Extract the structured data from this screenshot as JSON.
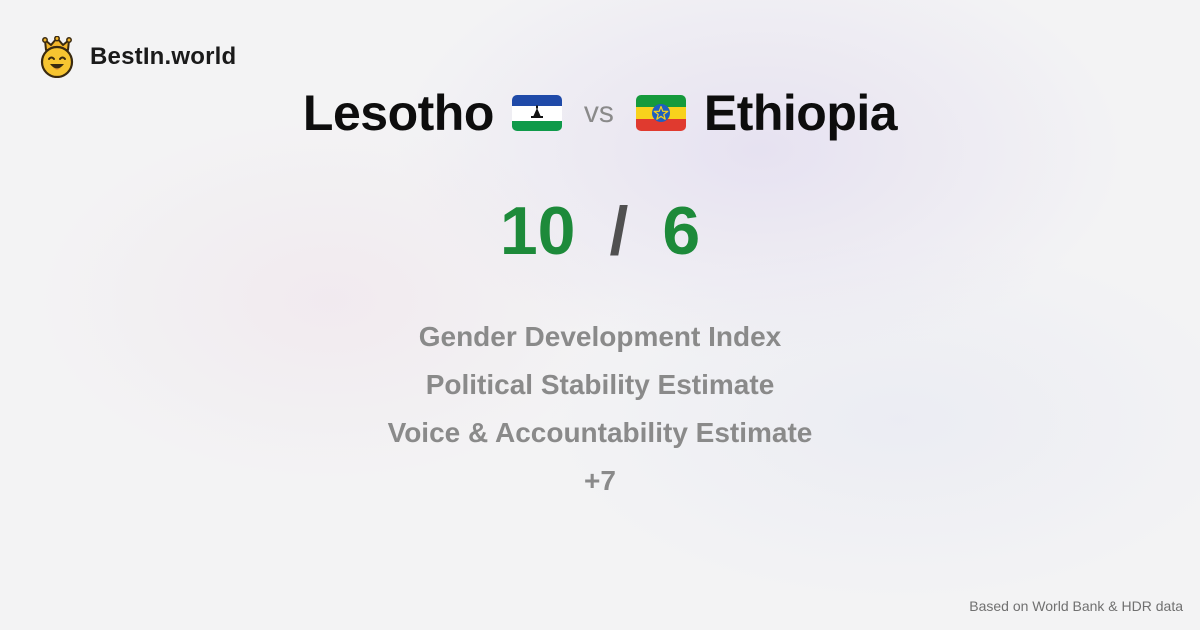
{
  "brand": {
    "name": "BestIn.world",
    "logo_icon": "smiling-crown-face-icon",
    "logo_color": "#f7c531"
  },
  "comparison": {
    "left": {
      "country": "Lesotho",
      "flag_icon": "lesotho-flag-icon",
      "score": "10"
    },
    "vs_label": "vs",
    "right": {
      "country": "Ethiopia",
      "flag_icon": "ethiopia-flag-icon",
      "score": "6"
    },
    "score_separator": "/",
    "score_color": "#1d8a3a"
  },
  "metrics": [
    "Gender Development Index",
    "Political Stability Estimate",
    "Voice & Accountability Estimate",
    "+7"
  ],
  "footer": {
    "source": "Based on World Bank & HDR data"
  }
}
